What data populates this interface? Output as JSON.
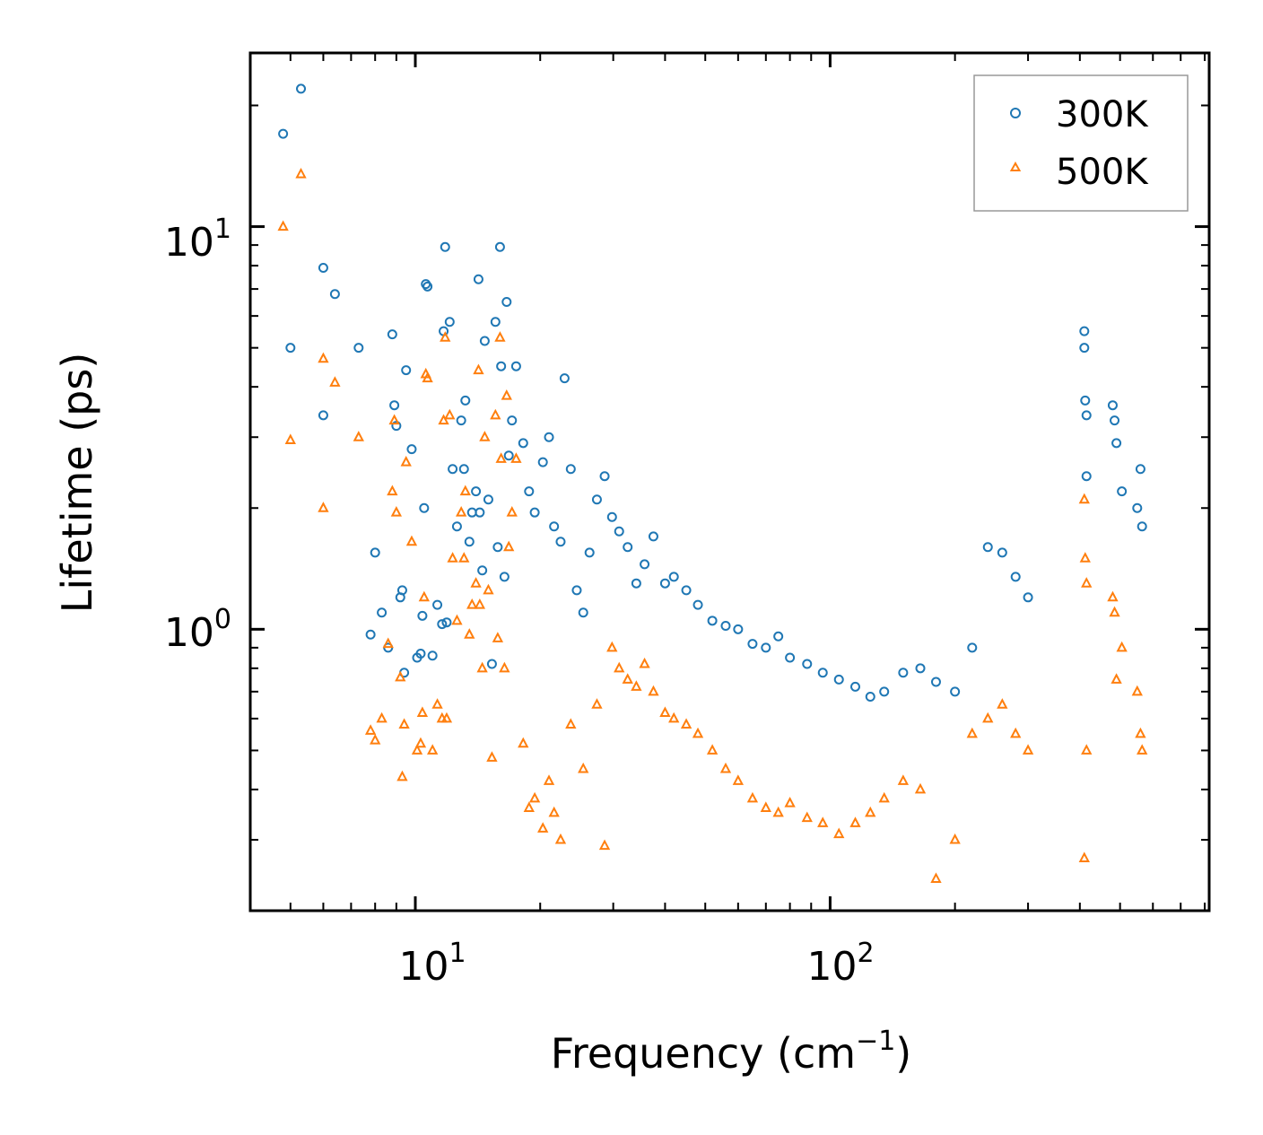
{
  "chart_data": {
    "type": "scatter",
    "title": "",
    "xlabel": "Frequency (cm",
    "xlabel_sup": "−1",
    "xlabel_close": ")",
    "ylabel": "Lifetime (ps)",
    "xscale": "log",
    "yscale": "log",
    "xlim": [
      4.0,
      820
    ],
    "ylim": [
      0.2,
      27
    ],
    "x_major_ticks": [
      {
        "value": 10,
        "base": "10",
        "exp": "1"
      },
      {
        "value": 100,
        "base": "10",
        "exp": "2"
      }
    ],
    "y_major_ticks": [
      {
        "value": 1,
        "base": "10",
        "exp": "0"
      },
      {
        "value": 10,
        "base": "10",
        "exp": "1"
      }
    ],
    "legend": {
      "position": "top-right",
      "entries": [
        "300K",
        "500K"
      ]
    },
    "colors": {
      "300K": "#1f77b4",
      "500K": "#ff7f0e"
    },
    "series": [
      {
        "name": "300K",
        "marker": "circle-open",
        "points": [
          [
            4.8,
            17.0
          ],
          [
            5.3,
            22.0
          ],
          [
            5.0,
            5.0
          ],
          [
            6.0,
            7.9
          ],
          [
            6.4,
            6.8
          ],
          [
            6.0,
            3.4
          ],
          [
            7.3,
            5.0
          ],
          [
            7.8,
            0.97
          ],
          [
            8.0,
            1.55
          ],
          [
            8.3,
            1.1
          ],
          [
            8.6,
            0.9
          ],
          [
            8.8,
            5.4
          ],
          [
            8.9,
            3.6
          ],
          [
            9.0,
            3.2
          ],
          [
            9.2,
            1.2
          ],
          [
            9.3,
            1.25
          ],
          [
            9.4,
            0.78
          ],
          [
            9.5,
            4.4
          ],
          [
            9.8,
            2.8
          ],
          [
            10.1,
            0.85
          ],
          [
            10.3,
            0.87
          ],
          [
            10.4,
            1.08
          ],
          [
            10.5,
            2.0
          ],
          [
            10.6,
            7.2
          ],
          [
            10.7,
            7.1
          ],
          [
            11.0,
            0.86
          ],
          [
            11.3,
            1.15
          ],
          [
            11.6,
            1.03
          ],
          [
            11.7,
            5.5
          ],
          [
            11.8,
            8.9
          ],
          [
            11.9,
            1.04
          ],
          [
            12.1,
            5.8
          ],
          [
            12.3,
            2.5
          ],
          [
            12.6,
            1.8
          ],
          [
            12.9,
            3.3
          ],
          [
            13.1,
            2.5
          ],
          [
            13.2,
            3.7
          ],
          [
            13.5,
            1.65
          ],
          [
            13.7,
            1.95
          ],
          [
            14.0,
            2.2
          ],
          [
            14.2,
            7.4
          ],
          [
            14.3,
            1.95
          ],
          [
            14.5,
            1.4
          ],
          [
            14.7,
            5.2
          ],
          [
            15.0,
            2.1
          ],
          [
            15.3,
            0.82
          ],
          [
            15.6,
            5.8
          ],
          [
            15.8,
            1.6
          ],
          [
            16.0,
            8.9
          ],
          [
            16.1,
            4.5
          ],
          [
            16.4,
            1.35
          ],
          [
            16.6,
            6.5
          ],
          [
            16.8,
            2.7
          ],
          [
            17.1,
            3.3
          ],
          [
            17.5,
            4.5
          ],
          [
            18.2,
            2.9
          ],
          [
            18.8,
            2.2
          ],
          [
            19.4,
            1.95
          ],
          [
            20.3,
            2.6
          ],
          [
            21.0,
            3.0
          ],
          [
            21.6,
            1.8
          ],
          [
            22.4,
            1.65
          ],
          [
            22.9,
            4.2
          ],
          [
            23.7,
            2.5
          ],
          [
            24.5,
            1.25
          ],
          [
            25.4,
            1.1
          ],
          [
            26.3,
            1.55
          ],
          [
            27.4,
            2.1
          ],
          [
            28.6,
            2.4
          ],
          [
            29.8,
            1.9
          ],
          [
            31.0,
            1.75
          ],
          [
            32.5,
            1.6
          ],
          [
            34.1,
            1.3
          ],
          [
            35.7,
            1.45
          ],
          [
            37.5,
            1.7
          ],
          [
            40.0,
            1.3
          ],
          [
            42.0,
            1.35
          ],
          [
            45.0,
            1.25
          ],
          [
            48.0,
            1.15
          ],
          [
            52.0,
            1.05
          ],
          [
            56.0,
            1.02
          ],
          [
            60.0,
            1.0
          ],
          [
            65.0,
            0.92
          ],
          [
            70.0,
            0.9
          ],
          [
            75.0,
            0.96
          ],
          [
            80.0,
            0.85
          ],
          [
            88.0,
            0.82
          ],
          [
            96.0,
            0.78
          ],
          [
            105.0,
            0.75
          ],
          [
            115.0,
            0.72
          ],
          [
            125.0,
            0.68
          ],
          [
            135.0,
            0.7
          ],
          [
            150.0,
            0.78
          ],
          [
            165.0,
            0.8
          ],
          [
            180.0,
            0.74
          ],
          [
            200.0,
            0.7
          ],
          [
            220.0,
            0.9
          ],
          [
            240.0,
            1.6
          ],
          [
            260.0,
            1.55
          ],
          [
            280.0,
            1.35
          ],
          [
            300.0,
            1.2
          ],
          [
            410.0,
            5.5
          ],
          [
            410.0,
            5.0
          ],
          [
            412.0,
            3.7
          ],
          [
            415.0,
            3.4
          ],
          [
            415.0,
            2.4
          ],
          [
            480.0,
            3.6
          ],
          [
            485.0,
            3.3
          ],
          [
            490.0,
            2.9
          ],
          [
            505.0,
            2.2
          ],
          [
            550.0,
            2.0
          ],
          [
            560.0,
            2.5
          ],
          [
            565.0,
            1.8
          ]
        ]
      },
      {
        "name": "500K",
        "marker": "triangle-open",
        "points": [
          [
            4.8,
            10.0
          ],
          [
            5.3,
            13.5
          ],
          [
            5.0,
            2.95
          ],
          [
            6.0,
            4.7
          ],
          [
            6.4,
            4.1
          ],
          [
            6.0,
            2.0
          ],
          [
            7.3,
            3.0
          ],
          [
            7.8,
            0.56
          ],
          [
            8.0,
            0.53
          ],
          [
            8.3,
            0.6
          ],
          [
            8.6,
            0.92
          ],
          [
            8.8,
            2.2
          ],
          [
            8.9,
            3.3
          ],
          [
            9.0,
            1.95
          ],
          [
            9.2,
            0.76
          ],
          [
            9.3,
            0.43
          ],
          [
            9.4,
            0.58
          ],
          [
            9.5,
            2.6
          ],
          [
            9.8,
            1.65
          ],
          [
            10.1,
            0.5
          ],
          [
            10.3,
            0.52
          ],
          [
            10.4,
            0.62
          ],
          [
            10.5,
            1.2
          ],
          [
            10.6,
            4.3
          ],
          [
            10.7,
            4.2
          ],
          [
            11.0,
            0.5
          ],
          [
            11.3,
            0.65
          ],
          [
            11.6,
            0.6
          ],
          [
            11.7,
            3.3
          ],
          [
            11.8,
            5.3
          ],
          [
            11.9,
            0.6
          ],
          [
            12.1,
            3.4
          ],
          [
            12.3,
            1.5
          ],
          [
            12.6,
            1.05
          ],
          [
            12.9,
            1.95
          ],
          [
            13.1,
            1.5
          ],
          [
            13.2,
            2.2
          ],
          [
            13.5,
            0.97
          ],
          [
            13.7,
            1.15
          ],
          [
            14.0,
            1.3
          ],
          [
            14.2,
            4.4
          ],
          [
            14.3,
            1.15
          ],
          [
            14.5,
            0.8
          ],
          [
            14.7,
            3.0
          ],
          [
            15.0,
            1.25
          ],
          [
            15.3,
            0.48
          ],
          [
            15.6,
            3.4
          ],
          [
            15.8,
            0.95
          ],
          [
            16.0,
            5.3
          ],
          [
            16.1,
            2.65
          ],
          [
            16.4,
            0.8
          ],
          [
            16.6,
            3.8
          ],
          [
            16.8,
            1.6
          ],
          [
            17.1,
            1.95
          ],
          [
            17.5,
            2.65
          ],
          [
            18.2,
            0.52
          ],
          [
            18.8,
            0.36
          ],
          [
            19.4,
            0.38
          ],
          [
            20.3,
            0.32
          ],
          [
            21.0,
            0.42
          ],
          [
            21.6,
            0.35
          ],
          [
            22.4,
            0.3
          ],
          [
            23.7,
            0.58
          ],
          [
            25.4,
            0.45
          ],
          [
            27.4,
            0.65
          ],
          [
            28.6,
            0.29
          ],
          [
            29.8,
            0.9
          ],
          [
            31.0,
            0.8
          ],
          [
            32.5,
            0.75
          ],
          [
            34.1,
            0.72
          ],
          [
            35.7,
            0.82
          ],
          [
            37.5,
            0.7
          ],
          [
            40.0,
            0.62
          ],
          [
            42.0,
            0.6
          ],
          [
            45.0,
            0.58
          ],
          [
            48.0,
            0.55
          ],
          [
            52.0,
            0.5
          ],
          [
            56.0,
            0.45
          ],
          [
            60.0,
            0.42
          ],
          [
            65.0,
            0.38
          ],
          [
            70.0,
            0.36
          ],
          [
            75.0,
            0.35
          ],
          [
            80.0,
            0.37
          ],
          [
            88.0,
            0.34
          ],
          [
            96.0,
            0.33
          ],
          [
            105.0,
            0.31
          ],
          [
            115.0,
            0.33
          ],
          [
            125.0,
            0.35
          ],
          [
            135.0,
            0.38
          ],
          [
            150.0,
            0.42
          ],
          [
            165.0,
            0.4
          ],
          [
            180.0,
            0.24
          ],
          [
            200.0,
            0.3
          ],
          [
            220.0,
            0.55
          ],
          [
            240.0,
            0.6
          ],
          [
            260.0,
            0.65
          ],
          [
            280.0,
            0.55
          ],
          [
            300.0,
            0.5
          ],
          [
            410.0,
            2.1
          ],
          [
            410.0,
            0.27
          ],
          [
            412.0,
            1.5
          ],
          [
            415.0,
            1.3
          ],
          [
            415.0,
            0.5
          ],
          [
            480.0,
            1.2
          ],
          [
            485.0,
            1.1
          ],
          [
            490.0,
            0.75
          ],
          [
            505.0,
            0.9
          ],
          [
            550.0,
            0.7
          ],
          [
            560.0,
            0.55
          ],
          [
            565.0,
            0.5
          ]
        ]
      }
    ]
  }
}
